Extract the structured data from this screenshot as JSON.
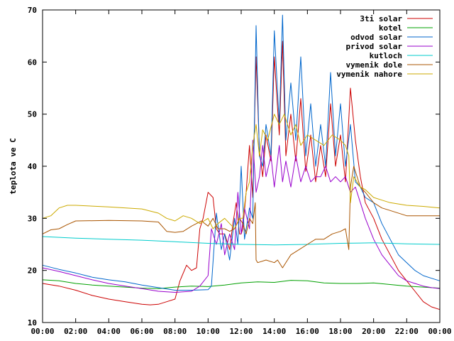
{
  "chart_data": {
    "type": "line",
    "title": "",
    "xlabel": "",
    "ylabel": "teplota ve C",
    "ylim": [
      10,
      70
    ],
    "y_ticks": [
      10,
      20,
      30,
      40,
      50,
      60,
      70
    ],
    "xlim": [
      0,
      24
    ],
    "x_tick_labels": [
      "00:00",
      "02:00",
      "04:00",
      "06:00",
      "08:00",
      "10:00",
      "12:00",
      "14:00",
      "16:00",
      "18:00",
      "20:00",
      "22:00",
      "00:00"
    ],
    "grid": false,
    "legend_position": "top-right",
    "series": [
      {
        "name": "3ti solar",
        "color": "#cc0000",
        "x": [
          0,
          1,
          2,
          3,
          4,
          5,
          6,
          6.5,
          7,
          7.5,
          8,
          8.3,
          8.7,
          9.0,
          9.3,
          9.5,
          9.7,
          10.0,
          10.3,
          10.5,
          10.7,
          11.0,
          11.3,
          11.5,
          11.7,
          11.9,
          12.0,
          12.1,
          12.3,
          12.5,
          12.7,
          12.9,
          13.1,
          13.3,
          13.5,
          13.8,
          14.0,
          14.3,
          14.5,
          14.7,
          15.0,
          15.3,
          15.6,
          15.9,
          16.2,
          16.5,
          16.8,
          17.1,
          17.4,
          17.7,
          18.0,
          18.3,
          18.6,
          18.9,
          19.2,
          19.5,
          20,
          20.5,
          21,
          21.5,
          22,
          22.5,
          23,
          23.5,
          24
        ],
        "values": [
          17.5,
          17,
          16.2,
          15.2,
          14.5,
          14,
          13.5,
          13.4,
          13.5,
          14,
          14.5,
          18,
          21,
          20,
          20.5,
          28,
          30,
          35,
          34,
          28,
          27,
          27,
          24,
          29,
          33,
          27,
          27,
          28,
          35,
          44,
          34,
          61,
          43,
          38,
          46,
          41,
          61,
          46,
          64,
          42,
          50,
          41,
          53,
          39,
          46,
          37,
          44,
          38,
          52,
          40,
          46,
          37,
          55,
          45,
          38,
          33,
          30,
          26,
          23,
          20,
          18,
          16,
          14,
          13,
          12.5
        ]
      },
      {
        "name": "kotel",
        "color": "#00a000",
        "x": [
          0,
          1,
          2,
          3,
          4,
          5,
          6,
          7,
          8,
          9,
          10,
          11,
          12,
          13,
          14,
          15,
          16,
          17,
          18,
          19,
          20,
          21,
          22,
          23,
          24
        ],
        "values": [
          18.2,
          18,
          17.5,
          17.2,
          17,
          16.8,
          16.6,
          16.5,
          16.8,
          17,
          16.9,
          17.2,
          17.6,
          17.8,
          17.7,
          18.1,
          18,
          17.6,
          17.5,
          17.5,
          17.6,
          17.3,
          17,
          16.8,
          16.6
        ]
      },
      {
        "name": "odvod solar",
        "color": "#0066cc",
        "x": [
          0,
          1,
          2,
          3,
          4,
          5,
          6,
          7,
          8,
          9,
          10,
          10.2,
          10.5,
          10.8,
          11.0,
          11.3,
          11.6,
          11.8,
          12.0,
          12.2,
          12.5,
          12.7,
          12.9,
          13.1,
          13.3,
          13.5,
          13.8,
          14.0,
          14.3,
          14.5,
          14.7,
          15.0,
          15.3,
          15.6,
          15.9,
          16.2,
          16.5,
          16.8,
          17.1,
          17.4,
          17.7,
          18.0,
          18.3,
          18.6,
          18.9,
          19.2,
          19.5,
          20,
          20.5,
          21,
          21.5,
          22,
          22.5,
          23,
          23.5,
          24
        ],
        "values": [
          21,
          20.2,
          19.5,
          18.7,
          18.2,
          17.8,
          17.2,
          16.7,
          16.2,
          16.2,
          16.3,
          17,
          31,
          24,
          27,
          22,
          30,
          25,
          40,
          26,
          32,
          30,
          67,
          42,
          40,
          48,
          42,
          66,
          48,
          69,
          45,
          56,
          45,
          61,
          42,
          52,
          40,
          48,
          40,
          58,
          42,
          52,
          40,
          48,
          37,
          36,
          34,
          33,
          29,
          26,
          23,
          21.5,
          20,
          19,
          18.5,
          18
        ]
      },
      {
        "name": "privod solar",
        "color": "#9900cc",
        "x": [
          0,
          1,
          2,
          3,
          4,
          5,
          6,
          7,
          8,
          9,
          9.5,
          10,
          10.2,
          10.5,
          10.8,
          11.0,
          11.3,
          11.6,
          11.8,
          12.0,
          12.2,
          12.5,
          12.7,
          12.9,
          13.1,
          13.3,
          13.5,
          13.8,
          14.0,
          14.3,
          14.5,
          14.7,
          15.0,
          15.3,
          15.6,
          15.9,
          16.2,
          16.5,
          16.8,
          17.1,
          17.4,
          17.7,
          18.0,
          18.3,
          18.6,
          18.9,
          19.2,
          19.5,
          20,
          20.5,
          21,
          21.5,
          22,
          22.5,
          23,
          23.5,
          24
        ],
        "values": [
          20.5,
          19.8,
          19,
          18.2,
          17.5,
          17,
          16.5,
          16,
          15.8,
          16,
          17,
          19,
          28,
          25,
          29,
          23,
          27,
          24,
          35,
          27,
          32,
          28,
          45,
          35,
          38,
          44,
          38,
          42,
          36,
          44,
          37,
          41,
          36,
          42,
          37,
          40,
          37,
          38,
          38,
          40,
          37,
          38,
          37,
          38,
          35,
          36,
          33,
          30,
          26,
          23,
          21,
          19,
          18,
          17.5,
          17,
          16.7,
          16.5
        ]
      },
      {
        "name": "kutloch",
        "color": "#00cccc",
        "x": [
          0,
          2,
          4,
          6,
          8,
          10,
          12,
          14,
          16,
          18,
          20,
          22,
          24
        ],
        "values": [
          26.5,
          26.2,
          26,
          25.8,
          25.5,
          25.2,
          25,
          24.9,
          25,
          25.2,
          25.3,
          25.1,
          25
        ]
      },
      {
        "name": "vymenik dole",
        "color": "#aa5500",
        "x": [
          0,
          0.5,
          1,
          1.5,
          2,
          4,
          6,
          7,
          7.5,
          8,
          8.5,
          9,
          9.3,
          9.6,
          10,
          10.3,
          10.6,
          11,
          11.3,
          11.6,
          11.9,
          12.1,
          12.3,
          12.5,
          12.7,
          12.85,
          12.9,
          13.0,
          13.5,
          14.0,
          14.2,
          14.5,
          14.8,
          15.0,
          15.5,
          16,
          16.5,
          17,
          17.5,
          18,
          18.3,
          18.5,
          18.6,
          18.8,
          19.2,
          19.5,
          20,
          20.5,
          21,
          22,
          23,
          24
        ],
        "values": [
          27,
          27.8,
          28,
          28.8,
          29.5,
          29.6,
          29.5,
          29.3,
          27.5,
          27.3,
          27.5,
          28.5,
          29,
          29.5,
          28.5,
          30,
          28,
          28,
          27.5,
          28,
          30,
          29,
          27,
          30,
          29,
          33,
          22,
          21.5,
          22,
          21.5,
          22,
          20.5,
          22,
          23,
          24,
          25,
          26,
          26,
          27,
          27.5,
          28,
          24,
          36,
          40,
          36,
          35,
          33,
          32,
          31.5,
          30.5,
          30.5,
          30.5
        ]
      },
      {
        "name": "vymenik nahore",
        "color": "#ccaa00",
        "x": [
          0,
          0.5,
          1,
          1.5,
          2,
          4,
          6,
          7,
          7.5,
          8,
          8.5,
          9,
          9.5,
          10,
          10.3,
          10.6,
          11,
          11.3,
          11.6,
          11.9,
          12.1,
          12.3,
          12.5,
          12.7,
          12.9,
          13.1,
          13.3,
          13.6,
          14.0,
          14.3,
          14.6,
          15.0,
          15.3,
          15.6,
          16,
          16.5,
          17,
          17.5,
          18,
          18.3,
          18.5,
          18.6,
          18.8,
          19.2,
          19.5,
          20,
          20.5,
          21,
          22,
          23,
          24
        ],
        "values": [
          30,
          30.5,
          32,
          32.5,
          32.5,
          32.2,
          31.8,
          31,
          30,
          29.5,
          30.5,
          30,
          29,
          30,
          28,
          29,
          30,
          29,
          28,
          30,
          30,
          35,
          37,
          44,
          48,
          42,
          47,
          45,
          50,
          48,
          50,
          46,
          48,
          44,
          46,
          45,
          44,
          46,
          45,
          44,
          42,
          33,
          38,
          36,
          35.5,
          34,
          33.5,
          33,
          32.5,
          32.3,
          32
        ]
      }
    ]
  }
}
